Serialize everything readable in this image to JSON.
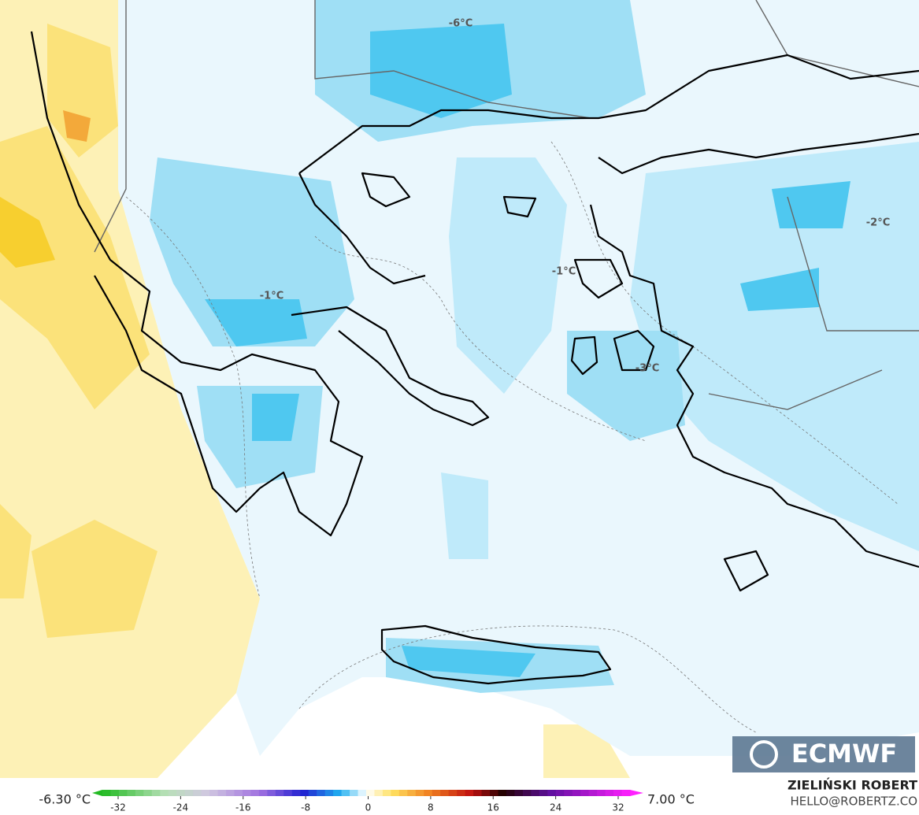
{
  "map": {
    "contour_labels": [
      "-6°C",
      "-2°C",
      "-1°C",
      "-1°C",
      "-3°C"
    ],
    "logo": "ECMWF",
    "credit": {
      "name": "ZIELIŃSKI ROBERT",
      "contact": "HELLO@ROBERTZ.CO"
    },
    "legend": {
      "min_label": "-6.30 °C",
      "max_label": "7.00 °C",
      "ticks": [
        -32,
        -24,
        -16,
        -8,
        0,
        8,
        16,
        24,
        32
      ]
    }
  }
}
